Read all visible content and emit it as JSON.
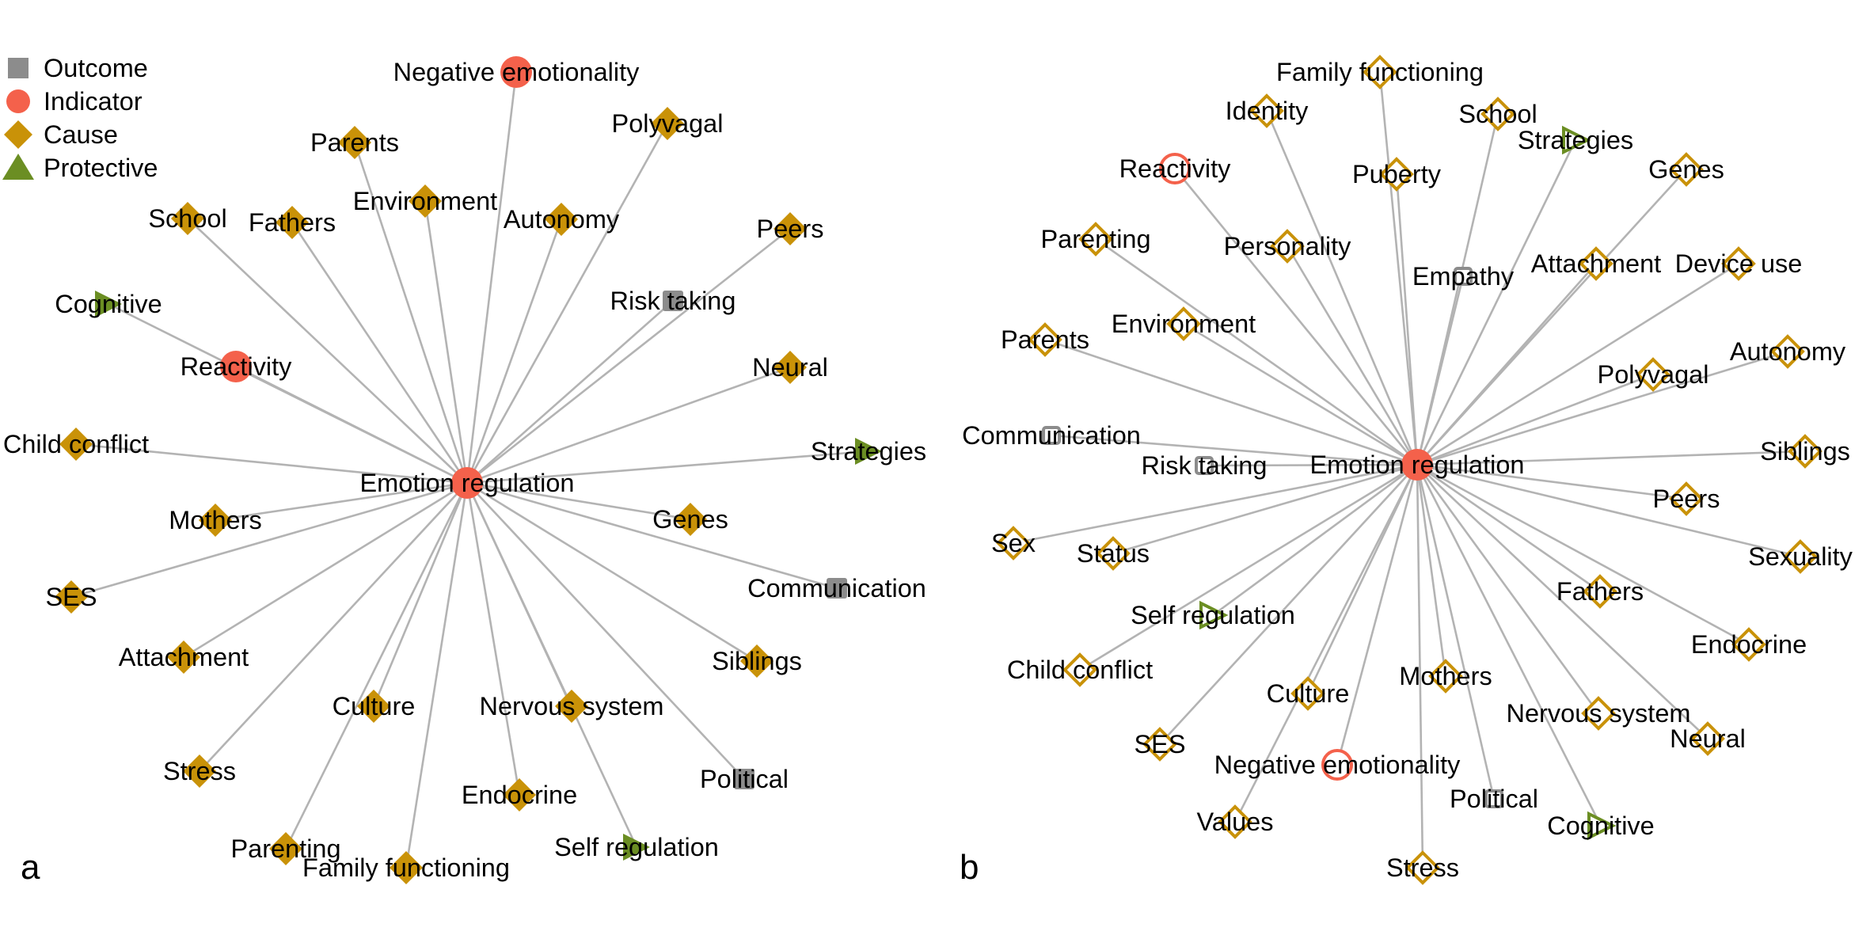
{
  "colors": {
    "outcome": "#8c8c8c",
    "indicator": "#f4614b",
    "cause": "#c99208",
    "protective": "#6b8e23",
    "edge": "#b3b3b3"
  },
  "legend": [
    {
      "type": "outcome",
      "label": "Outcome"
    },
    {
      "type": "indicator",
      "label": "Indicator"
    },
    {
      "type": "cause",
      "label": "Cause"
    },
    {
      "type": "protective",
      "label": "Protective"
    }
  ],
  "panels": [
    {
      "id": "a",
      "label": "a",
      "center": "Emotion regulation",
      "filled": true,
      "nodes": [
        {
          "label": "Negative emotionality",
          "type": "indicator"
        },
        {
          "label": "Parents",
          "type": "cause"
        },
        {
          "label": "Polyvagal",
          "type": "cause"
        },
        {
          "label": "Environment",
          "type": "cause"
        },
        {
          "label": "School",
          "type": "cause"
        },
        {
          "label": "Fathers",
          "type": "cause"
        },
        {
          "label": "Autonomy",
          "type": "cause"
        },
        {
          "label": "Peers",
          "type": "cause"
        },
        {
          "label": "Cognitive",
          "type": "protective"
        },
        {
          "label": "Risk taking",
          "type": "outcome"
        },
        {
          "label": "Reactivity",
          "type": "indicator"
        },
        {
          "label": "Neural",
          "type": "cause"
        },
        {
          "label": "Child conflict",
          "type": "cause"
        },
        {
          "label": "Strategies",
          "type": "protective"
        },
        {
          "label": "Mothers",
          "type": "cause"
        },
        {
          "label": "Genes",
          "type": "cause"
        },
        {
          "label": "SES",
          "type": "cause"
        },
        {
          "label": "Communication",
          "type": "outcome"
        },
        {
          "label": "Attachment",
          "type": "cause"
        },
        {
          "label": "Siblings",
          "type": "cause"
        },
        {
          "label": "Culture",
          "type": "cause"
        },
        {
          "label": "Nervous system",
          "type": "cause"
        },
        {
          "label": "Stress",
          "type": "cause"
        },
        {
          "label": "Political",
          "type": "outcome"
        },
        {
          "label": "Endocrine",
          "type": "cause"
        },
        {
          "label": "Parenting",
          "type": "cause"
        },
        {
          "label": "Self regulation",
          "type": "protective"
        },
        {
          "label": "Family functioning",
          "type": "cause"
        }
      ]
    },
    {
      "id": "b",
      "label": "b",
      "center": "Emotion regulation",
      "filled": false,
      "nodes": [
        {
          "label": "Family functioning",
          "type": "cause"
        },
        {
          "label": "Identity",
          "type": "cause"
        },
        {
          "label": "School",
          "type": "cause"
        },
        {
          "label": "Strategies",
          "type": "protective"
        },
        {
          "label": "Reactivity",
          "type": "indicator"
        },
        {
          "label": "Puberty",
          "type": "cause"
        },
        {
          "label": "Genes",
          "type": "cause"
        },
        {
          "label": "Parenting",
          "type": "cause"
        },
        {
          "label": "Personality",
          "type": "cause"
        },
        {
          "label": "Empathy",
          "type": "outcome"
        },
        {
          "label": "Attachment",
          "type": "cause"
        },
        {
          "label": "Device use",
          "type": "cause"
        },
        {
          "label": "Environment",
          "type": "cause"
        },
        {
          "label": "Parents",
          "type": "cause"
        },
        {
          "label": "Autonomy",
          "type": "cause"
        },
        {
          "label": "Polyvagal",
          "type": "cause"
        },
        {
          "label": "Communication",
          "type": "outcome"
        },
        {
          "label": "Risk taking",
          "type": "outcome"
        },
        {
          "label": "Siblings",
          "type": "cause"
        },
        {
          "label": "Peers",
          "type": "cause"
        },
        {
          "label": "Sex",
          "type": "cause"
        },
        {
          "label": "Status",
          "type": "cause"
        },
        {
          "label": "Sexuality",
          "type": "cause"
        },
        {
          "label": "Fathers",
          "type": "cause"
        },
        {
          "label": "Self regulation",
          "type": "protective"
        },
        {
          "label": "Endocrine",
          "type": "cause"
        },
        {
          "label": "Child conflict",
          "type": "cause"
        },
        {
          "label": "Culture",
          "type": "cause"
        },
        {
          "label": "Mothers",
          "type": "cause"
        },
        {
          "label": "Nervous system",
          "type": "cause"
        },
        {
          "label": "SES",
          "type": "cause"
        },
        {
          "label": "Neural",
          "type": "cause"
        },
        {
          "label": "Negative emotionality",
          "type": "indicator"
        },
        {
          "label": "Political",
          "type": "outcome"
        },
        {
          "label": "Values",
          "type": "cause"
        },
        {
          "label": "Cognitive",
          "type": "protective"
        },
        {
          "label": "Stress",
          "type": "cause"
        }
      ]
    }
  ]
}
